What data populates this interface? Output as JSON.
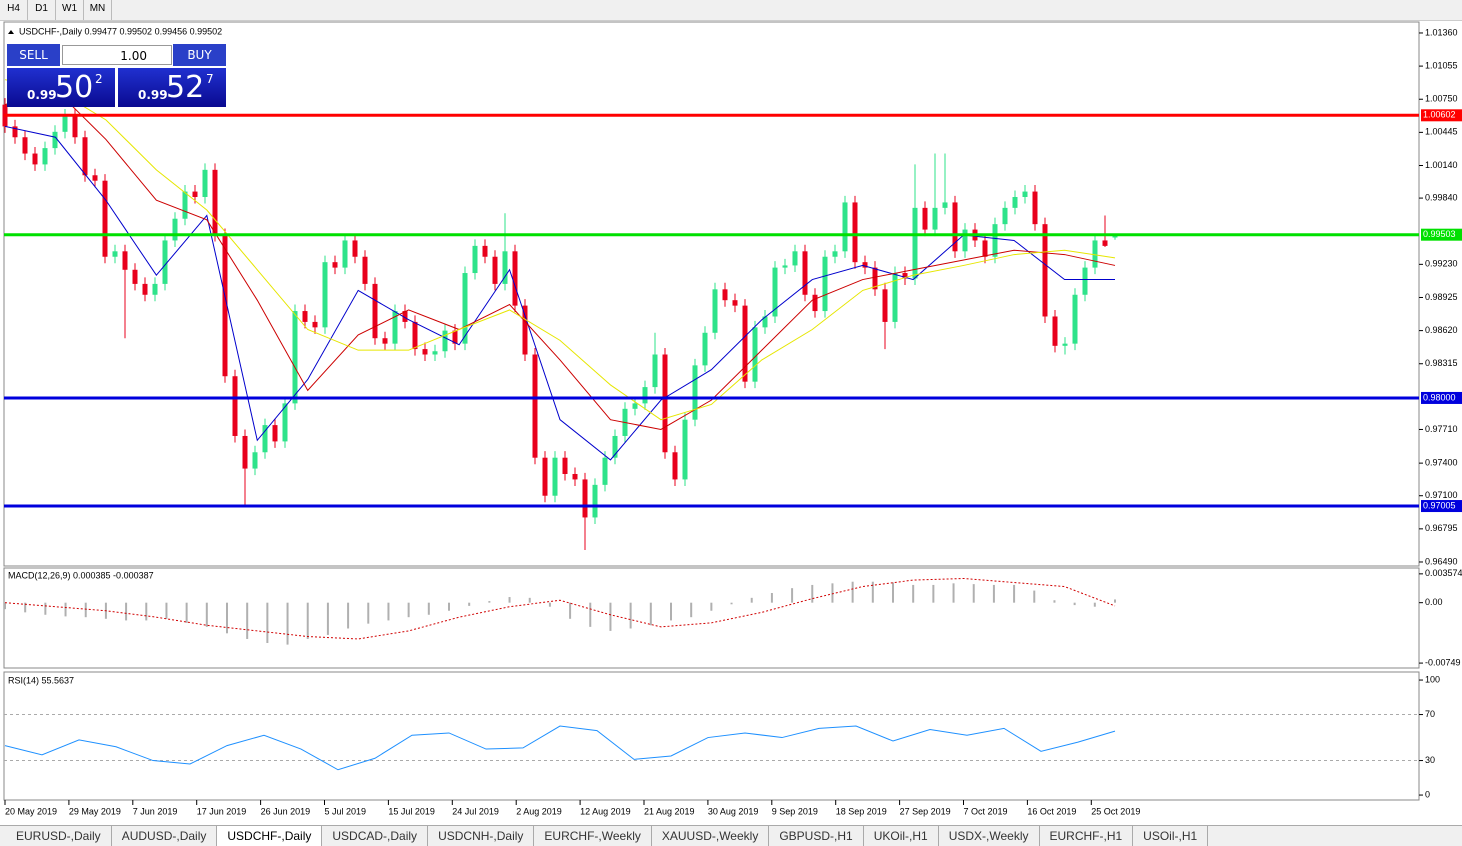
{
  "toolbar": [
    "H4",
    "D1",
    "W1",
    "MN"
  ],
  "trade_panel": {
    "sell": "SELL",
    "buy": "BUY",
    "lot": "1.00",
    "sell_price": {
      "prefix": "0.99",
      "big": "50",
      "small": "2"
    },
    "buy_price": {
      "prefix": "0.99",
      "big": "52",
      "small": "7"
    }
  },
  "chart_data": [
    {
      "type": "candlestick",
      "title": "USDCHF-,Daily 0.99477 0.99502 0.99456 0.99502",
      "up_color": "#2ee38a",
      "down_color": "#e8001c",
      "ylim": [
        0.96453,
        1.01461
      ],
      "yticks": [
        {
          "value": 1.0136,
          "label": "1.01360"
        },
        1.01055,
        {
          "value": 1.0075,
          "label": "1.00750"
        },
        1.00445,
        {
          "value": 1.0014,
          "label": "1.00140"
        },
        {
          "value": 0.9984,
          "label": "0.99840"
        },
        {
          "value": 0.9923,
          "label": "0.99230"
        },
        0.98925,
        {
          "value": 0.9862,
          "label": "0.98620"
        },
        0.98315,
        {
          "value": 0.9771,
          "label": "0.97710"
        },
        {
          "value": 0.974,
          "label": "0.97400"
        },
        {
          "value": 0.971,
          "label": "0.97100"
        },
        0.96795,
        {
          "value": 0.9649,
          "label": "0.96490"
        }
      ],
      "levels": [
        {
          "value": 1.00602,
          "color": "#ff0000"
        },
        {
          "value": 0.99503,
          "color": "#00e000"
        },
        {
          "value": 0.98,
          "label": "0.98000",
          "color": "#0000dd"
        },
        {
          "value": 0.97005,
          "color": "#0000dd"
        }
      ],
      "x_labels": [
        "20 May 2019",
        "29 May 2019",
        "7 Jun 2019",
        "17 Jun 2019",
        "26 Jun 2019",
        "5 Jul 2019",
        "15 Jul 2019",
        "24 Jul 2019",
        "2 Aug 2019",
        "12 Aug 2019",
        "21 Aug 2019",
        "30 Aug 2019",
        "9 Sep 2019",
        "18 Sep 2019",
        "27 Sep 2019",
        "7 Oct 2019",
        "16 Oct 2019",
        "25 Oct 2019"
      ],
      "candles": [
        [
          1.007,
          1.0076,
          1.0044,
          1.005
        ],
        [
          1.005,
          1.0056,
          1.0034,
          1.004
        ],
        [
          1.004,
          1.0046,
          1.0019,
          1.0025
        ],
        [
          1.0025,
          1.0031,
          1.0009,
          1.0015
        ],
        [
          1.0015,
          1.0036,
          1.0009,
          1.003
        ],
        [
          1.003,
          1.0051,
          1.0024,
          1.0045
        ],
        [
          1.0045,
          1.0066,
          1.0039,
          1.006
        ],
        [
          1.006,
          1.0066,
          1.0034,
          1.004
        ],
        [
          1.004,
          1.0046,
          0.9999,
          1.0005
        ],
        [
          1.0005,
          1.0011,
          0.9994,
          1
        ],
        [
          1,
          1.0006,
          0.9924,
          0.993
        ],
        [
          0.993,
          0.9941,
          0.9924,
          0.9935
        ],
        [
          0.9935,
          0.9941,
          0.9855,
          0.9918
        ],
        [
          0.9918,
          0.9924,
          0.9899,
          0.9905
        ],
        [
          0.9905,
          0.9911,
          0.9889,
          0.9895
        ],
        [
          0.9895,
          0.9911,
          0.9889,
          0.9905
        ],
        [
          0.9905,
          0.9951,
          0.9899,
          0.9945
        ],
        [
          0.9945,
          0.9971,
          0.9939,
          0.9965
        ],
        [
          0.9965,
          0.9996,
          0.9959,
          0.999
        ],
        [
          0.999,
          0.9996,
          0.9979,
          0.9985
        ],
        [
          0.9985,
          1.0016,
          0.9979,
          1.001
        ],
        [
          1.001,
          1.0016,
          0.9944,
          0.995
        ],
        [
          0.995,
          0.9956,
          0.9814,
          0.982
        ],
        [
          0.982,
          0.9826,
          0.9759,
          0.9765
        ],
        [
          0.9765,
          0.9771,
          0.97,
          0.9735
        ],
        [
          0.9735,
          0.9756,
          0.9729,
          0.975
        ],
        [
          0.975,
          0.9781,
          0.9744,
          0.9775
        ],
        [
          0.9775,
          0.9781,
          0.9754,
          0.976
        ],
        [
          0.976,
          0.9801,
          0.9754,
          0.9795
        ],
        [
          0.9795,
          0.9886,
          0.9789,
          0.988
        ],
        [
          0.988,
          0.9886,
          0.9864,
          0.987
        ],
        [
          0.987,
          0.9876,
          0.9859,
          0.9865
        ],
        [
          0.9865,
          0.9931,
          0.9859,
          0.9925
        ],
        [
          0.9925,
          0.9931,
          0.9914,
          0.992
        ],
        [
          0.992,
          0.9951,
          0.9914,
          0.9945
        ],
        [
          0.9945,
          0.9951,
          0.9924,
          0.993
        ],
        [
          0.993,
          0.9936,
          0.9899,
          0.9905
        ],
        [
          0.9905,
          0.9911,
          0.9849,
          0.9855
        ],
        [
          0.9855,
          0.9861,
          0.9844,
          0.985
        ],
        [
          0.985,
          0.9886,
          0.9844,
          0.988
        ],
        [
          0.988,
          0.9886,
          0.9864,
          0.987
        ],
        [
          0.987,
          0.9876,
          0.9839,
          0.9845
        ],
        [
          0.9845,
          0.9851,
          0.9834,
          0.984
        ],
        [
          0.984,
          0.9849,
          0.9834,
          0.9843
        ],
        [
          0.9843,
          0.9868,
          0.9837,
          0.9862
        ],
        [
          0.9862,
          0.9868,
          0.9844,
          0.985
        ],
        [
          0.985,
          0.9921,
          0.9844,
          0.9915
        ],
        [
          0.9915,
          0.9946,
          0.9909,
          0.994
        ],
        [
          0.994,
          0.9946,
          0.9924,
          0.993
        ],
        [
          0.993,
          0.9936,
          0.9899,
          0.9905
        ],
        [
          0.9905,
          0.997,
          0.9899,
          0.9935
        ],
        [
          0.9935,
          0.9941,
          0.9879,
          0.9885
        ],
        [
          0.9885,
          0.9891,
          0.9834,
          0.984
        ],
        [
          0.984,
          0.9846,
          0.9739,
          0.9745
        ],
        [
          0.9745,
          0.9751,
          0.9704,
          0.971
        ],
        [
          0.971,
          0.9751,
          0.9704,
          0.9745
        ],
        [
          0.9745,
          0.9751,
          0.9724,
          0.973
        ],
        [
          0.973,
          0.9736,
          0.9719,
          0.9725
        ],
        [
          0.9725,
          0.9731,
          0.966,
          0.969
        ],
        [
          0.969,
          0.9726,
          0.9684,
          0.972
        ],
        [
          0.972,
          0.9751,
          0.9714,
          0.9745
        ],
        [
          0.9745,
          0.9771,
          0.9739,
          0.9765
        ],
        [
          0.9765,
          0.9796,
          0.9759,
          0.979
        ],
        [
          0.979,
          0.9801,
          0.9784,
          0.9795
        ],
        [
          0.9795,
          0.9816,
          0.9789,
          0.981
        ],
        [
          0.981,
          0.986,
          0.9804,
          0.984
        ],
        [
          0.984,
          0.9846,
          0.9744,
          0.975
        ],
        [
          0.975,
          0.9756,
          0.9719,
          0.9725
        ],
        [
          0.9725,
          0.9786,
          0.9719,
          0.978
        ],
        [
          0.978,
          0.9836,
          0.9774,
          0.983
        ],
        [
          0.983,
          0.9866,
          0.9824,
          0.986
        ],
        [
          0.986,
          0.9906,
          0.9854,
          0.99
        ],
        [
          0.99,
          0.9906,
          0.9884,
          0.989
        ],
        [
          0.989,
          0.9896,
          0.9879,
          0.9885
        ],
        [
          0.9885,
          0.9891,
          0.9809,
          0.9815
        ],
        [
          0.9815,
          0.9871,
          0.9809,
          0.9865
        ],
        [
          0.9865,
          0.9881,
          0.9859,
          0.9875
        ],
        [
          0.9875,
          0.9926,
          0.9869,
          0.992
        ],
        [
          0.992,
          0.9928,
          0.9914,
          0.9922
        ],
        [
          0.9922,
          0.9941,
          0.9916,
          0.9935
        ],
        [
          0.9935,
          0.9941,
          0.9889,
          0.9895
        ],
        [
          0.9895,
          0.9901,
          0.9874,
          0.988
        ],
        [
          0.988,
          0.9936,
          0.9874,
          0.993
        ],
        [
          0.993,
          0.9941,
          0.9924,
          0.9935
        ],
        [
          0.9935,
          0.9986,
          0.9929,
          0.998
        ],
        [
          0.998,
          0.9986,
          0.9919,
          0.9925
        ],
        [
          0.9925,
          0.9931,
          0.9914,
          0.992
        ],
        [
          0.992,
          0.9926,
          0.9894,
          0.99
        ],
        [
          0.99,
          0.9906,
          0.9845,
          0.987
        ],
        [
          0.987,
          0.9921,
          0.9864,
          0.9915
        ],
        [
          0.9915,
          0.9921,
          0.9904,
          0.991
        ],
        [
          0.991,
          1.0015,
          0.9904,
          0.9975
        ],
        [
          0.9975,
          0.9981,
          0.9949,
          0.9955
        ],
        [
          0.9955,
          1.0025,
          0.9949,
          0.9975
        ],
        [
          0.9975,
          1.0025,
          0.9969,
          0.998
        ],
        [
          0.998,
          0.9986,
          0.9929,
          0.9935
        ],
        [
          0.9935,
          0.9961,
          0.9929,
          0.9955
        ],
        [
          0.9955,
          0.9961,
          0.9939,
          0.9945
        ],
        [
          0.9945,
          0.9951,
          0.9924,
          0.993
        ],
        [
          0.993,
          0.9966,
          0.9924,
          0.996
        ],
        [
          0.996,
          0.9981,
          0.9954,
          0.9975
        ],
        [
          0.9975,
          0.9991,
          0.9969,
          0.9985
        ],
        [
          0.9985,
          0.9996,
          0.9979,
          0.999
        ],
        [
          0.999,
          0.9996,
          0.9954,
          0.996
        ],
        [
          0.996,
          0.9966,
          0.9869,
          0.9875
        ],
        [
          0.9875,
          0.9881,
          0.9842,
          0.9848
        ],
        [
          0.9848,
          0.9856,
          0.984,
          0.985
        ],
        [
          0.985,
          0.9901,
          0.9844,
          0.9895
        ],
        [
          0.9895,
          0.9926,
          0.9889,
          0.992
        ],
        [
          0.992,
          0.9951,
          0.9914,
          0.9945
        ],
        [
          0.9945,
          0.9968,
          0.9939,
          0.994
        ],
        [
          0.99477,
          0.99502,
          0.99456,
          0.99502
        ]
      ],
      "ma_lines": [
        {
          "color": "#0000cc",
          "values": [
            1.005,
            1.004,
            0.9982,
            0.9913,
            0.9968,
            0.9761,
            0.9817,
            0.9899,
            0.9872,
            0.9849,
            0.9918,
            0.978,
            0.9743,
            0.9798,
            0.9826,
            0.9872,
            0.9909,
            0.9922,
            0.9909,
            0.995,
            0.9945,
            0.9909,
            0.9909
          ]
        },
        {
          "color": "#cc0000",
          "values": [
            1.007,
            1.0084,
            1.0038,
            0.9982,
            0.9964,
            0.989,
            0.9807,
            0.9858,
            0.9881,
            0.9863,
            0.9886,
            0.9835,
            0.978,
            0.9771,
            0.9798,
            0.9844,
            0.989,
            0.9909,
            0.9918,
            0.9927,
            0.9936,
            0.9932,
            0.9922
          ]
        },
        {
          "color": "#e6e600",
          "values": [
            1.0093,
            1.0084,
            1.0056,
            1.001,
            0.9973,
            0.9918,
            0.9863,
            0.9844,
            0.9844,
            0.9863,
            0.9881,
            0.9853,
            0.9812,
            0.978,
            0.9794,
            0.9835,
            0.9863,
            0.9899,
            0.9913,
            0.9922,
            0.9932,
            0.9936,
            0.9929
          ]
        }
      ]
    },
    {
      "type": "macd",
      "title": "MACD(12,26,9) 0.000385 -0.000387",
      "ylim": [
        -0.0081,
        0.0043
      ],
      "yticks": [
        0.003574,
        {
          "value": 0,
          "label": "0.00"
        },
        -0.00749
      ],
      "histogram": [
        -0.0008,
        -0.0012,
        -0.0015,
        -0.0017,
        -0.0018,
        -0.002,
        -0.0022,
        -0.0022,
        -0.002,
        -0.0025,
        -0.003,
        -0.0038,
        -0.0045,
        -0.005,
        -0.0052,
        -0.0045,
        -0.004,
        -0.0032,
        -0.0026,
        -0.0022,
        -0.0018,
        -0.0015,
        -0.001,
        -0.0004,
        0.0002,
        0.0007,
        0.0006,
        -0.0005,
        -0.002,
        -0.003,
        -0.0035,
        -0.0032,
        -0.0028,
        -0.0022,
        -0.0018,
        -0.001,
        -0.0002,
        0.0006,
        0.0012,
        0.0018,
        0.0022,
        0.0024,
        0.0026,
        0.0026,
        0.0025,
        0.0022,
        0.0022,
        0.0024,
        0.0023,
        0.0022,
        0.0022,
        0.0015,
        0.0003,
        -0.0003,
        -0.0005,
        0.0004
      ],
      "signal": [
        0,
        -0.0005,
        -0.001,
        -0.0018,
        -0.0028,
        -0.0035,
        -0.0042,
        -0.0045,
        -0.0035,
        -0.0018,
        -0.0005,
        0.0003,
        -0.0015,
        -0.003,
        -0.0025,
        -0.0012,
        0.0005,
        0.002,
        0.0028,
        0.003,
        0.0025,
        0.002,
        -0.0004
      ],
      "bar_color": "#b0b0b0",
      "signal_color": "#d00000"
    },
    {
      "type": "rsi",
      "title": "RSI(14) 55.5637",
      "ylim": [
        -4.3,
        107
      ],
      "yticks": [
        100,
        70,
        30,
        0
      ],
      "level_lines": [
        70,
        30
      ],
      "color": "#1e90ff",
      "values": [
        43,
        35,
        48,
        42,
        30,
        27,
        43,
        52,
        40,
        22,
        32,
        52,
        54,
        40,
        41,
        60,
        56,
        31,
        34,
        50,
        54,
        50,
        58,
        60,
        47,
        57,
        52,
        58,
        38,
        46,
        55.56
      ]
    }
  ],
  "tabs": {
    "items": [
      "EURUSD-,Daily",
      "AUDUSD-,Daily",
      "USDCHF-,Daily",
      "USDCAD-,Daily",
      "USDCNH-,Daily",
      "EURCHF-,Weekly",
      "XAUUSD-,Weekly",
      "GBPUSD-,H1",
      "UKOil-,H1",
      "USDX-,Weekly",
      "EURCHF-,H1",
      "USOil-,H1"
    ],
    "active": "USDCHF-,Daily"
  }
}
